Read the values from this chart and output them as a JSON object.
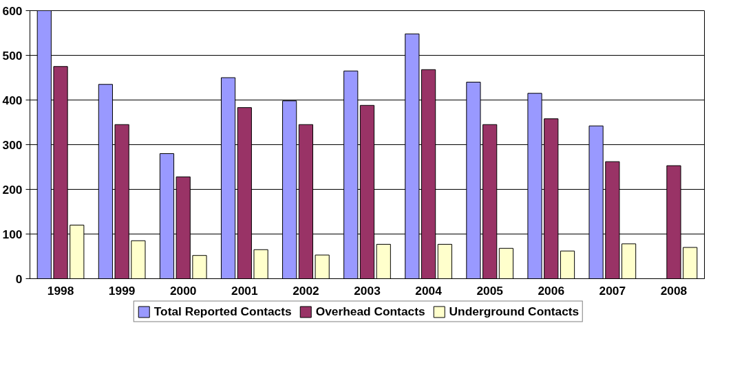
{
  "chart_data": {
    "type": "bar",
    "categories": [
      "1998",
      "1999",
      "2000",
      "2001",
      "2002",
      "2003",
      "2004",
      "2005",
      "2006",
      "2007",
      "2008"
    ],
    "series": [
      {
        "name": "Total Reported Contacts",
        "color": "#9999ff",
        "values": [
          600,
          435,
          280,
          450,
          398,
          465,
          548,
          440,
          415,
          342,
          null
        ]
      },
      {
        "name": "Overhead Contacts",
        "color": "#993366",
        "values": [
          475,
          345,
          228,
          383,
          345,
          388,
          468,
          345,
          358,
          262,
          253
        ]
      },
      {
        "name": "Underground Contacts",
        "color": "#ffffcc",
        "values": [
          120,
          85,
          52,
          65,
          53,
          77,
          77,
          68,
          62,
          78,
          70
        ]
      }
    ],
    "ylim": [
      0,
      600
    ],
    "yticks": [
      0,
      100,
      200,
      300,
      400,
      500,
      600
    ],
    "grid": "y",
    "legend": "bottom"
  }
}
